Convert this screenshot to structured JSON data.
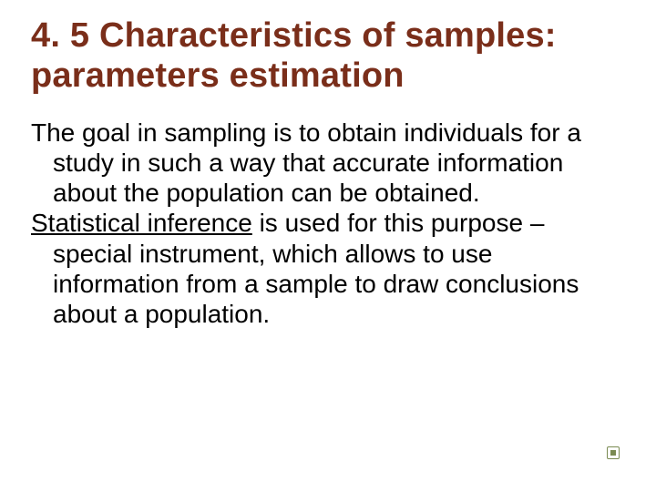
{
  "title_color": "#7a2e1a",
  "body_color": "#000000",
  "background_color": "#ffffff",
  "bullet_color": "#7a8a52",
  "title_fontsize": 38,
  "body_fontsize": 28,
  "title": "4. 5 Characteristics of samples: parameters estimation",
  "para1": "The goal in sampling is to obtain individuals for a study in such a way that accurate information about the population can be obtained.",
  "para2_lead": "Statistical inference",
  "para2_rest": " is used for this purpose – special instrument, which allows to use information from a sample to draw conclusions about a population."
}
